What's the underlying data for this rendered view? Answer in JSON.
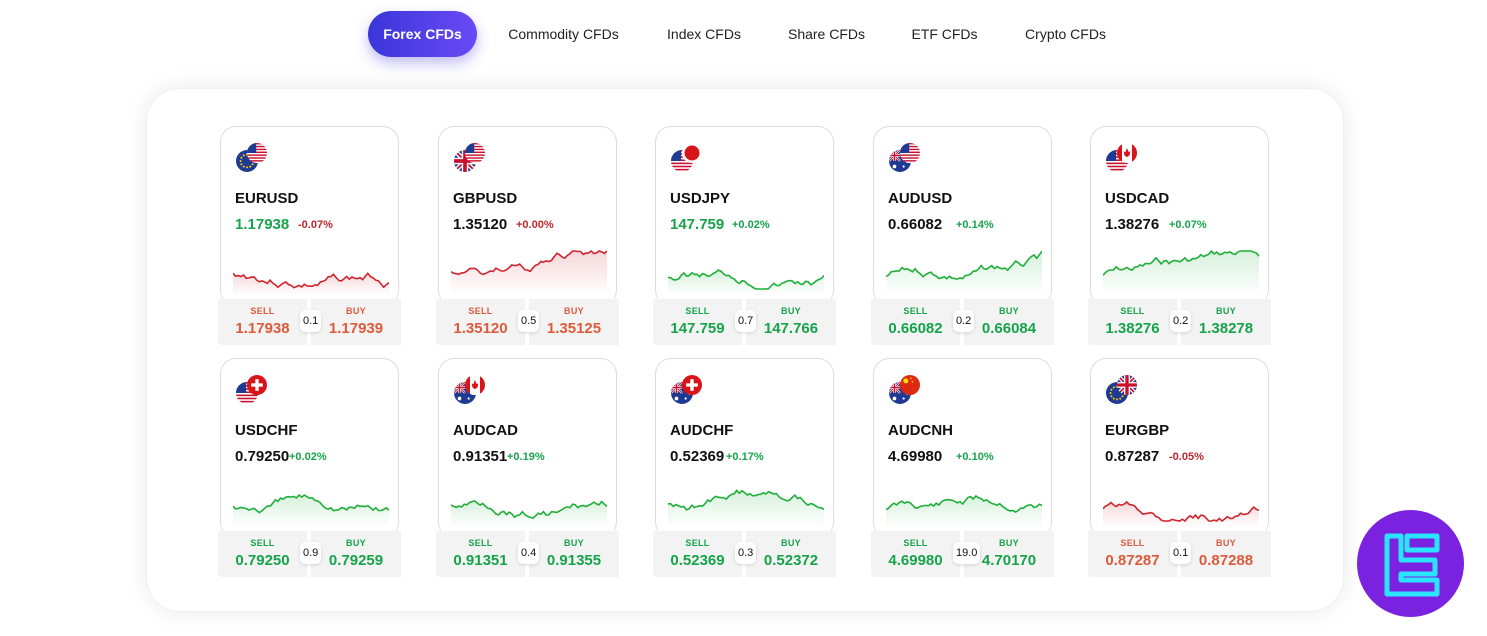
{
  "tabs": [
    {
      "label": "Forex CFDs",
      "active": true
    },
    {
      "label": "Commodity CFDs",
      "active": false
    },
    {
      "label": "Index CFDs",
      "active": false
    },
    {
      "label": "Share CFDs",
      "active": false
    },
    {
      "label": "ETF CFDs",
      "active": false
    },
    {
      "label": "Crypto CFDs",
      "active": false
    }
  ],
  "labels": {
    "sell": "SELL",
    "buy": "BUY"
  },
  "colors": {
    "up": "#16a34a",
    "down": "#c0262d",
    "accent": "#4a3de6",
    "logo": "#7b22e0"
  },
  "instruments": [
    {
      "symbol": "EURUSD",
      "price": "1.17938",
      "change": "-0.07%",
      "direction": "down",
      "sell": "1.17938",
      "buy": "1.17939",
      "spread": "0.1",
      "flags": [
        "eu-flag-icon",
        "us-flag-icon"
      ]
    },
    {
      "symbol": "GBPUSD",
      "price": "1.35120",
      "change": "+0.00%",
      "direction": "flat",
      "sell": "1.35120",
      "buy": "1.35125",
      "spread": "0.5",
      "flags": [
        "uk-flag-icon",
        "us-flag-icon"
      ]
    },
    {
      "symbol": "USDJPY",
      "price": "147.759",
      "change": "+0.02%",
      "direction": "up",
      "sell": "147.759",
      "buy": "147.766",
      "spread": "0.7",
      "flags": [
        "us-flag-icon",
        "jp-flag-icon"
      ]
    },
    {
      "symbol": "AUDUSD",
      "price": "0.66082",
      "change": "+0.14%",
      "direction": "up-dark",
      "sell": "0.66082",
      "buy": "0.66084",
      "spread": "0.2",
      "flags": [
        "au-flag-icon",
        "us-flag-icon"
      ]
    },
    {
      "symbol": "USDCAD",
      "price": "1.38276",
      "change": "+0.07%",
      "direction": "up-dark",
      "sell": "1.38276",
      "buy": "1.38278",
      "spread": "0.2",
      "flags": [
        "us-flag-icon",
        "ca-flag-icon"
      ]
    },
    {
      "symbol": "USDCHF",
      "price": "0.79250",
      "change": "+0.02%",
      "direction": "up-dark",
      "sell": "0.79250",
      "buy": "0.79259",
      "spread": "0.9",
      "flags": [
        "us-flag-icon",
        "ch-flag-icon"
      ]
    },
    {
      "symbol": "AUDCAD",
      "price": "0.91351",
      "change": "+0.19%",
      "direction": "up-dark",
      "sell": "0.91351",
      "buy": "0.91355",
      "spread": "0.4",
      "flags": [
        "au-flag-icon",
        "ca-flag-icon"
      ]
    },
    {
      "symbol": "AUDCHF",
      "price": "0.52369",
      "change": "+0.17%",
      "direction": "up-dark",
      "sell": "0.52369",
      "buy": "0.52372",
      "spread": "0.3",
      "flags": [
        "au-flag-icon",
        "ch-flag-icon"
      ]
    },
    {
      "symbol": "AUDCNH",
      "price": "4.69980",
      "change": "+0.10%",
      "direction": "up-dark",
      "sell": "4.69980",
      "buy": "4.70170",
      "spread": "19.0",
      "flags": [
        "au-flag-icon",
        "cn-flag-icon"
      ]
    },
    {
      "symbol": "EURGBP",
      "price": "0.87287",
      "change": "-0.05%",
      "direction": "down-dark",
      "sell": "0.87287",
      "buy": "0.87288",
      "spread": "0.1",
      "flags": [
        "eu-flag-icon",
        "uk-flag-icon"
      ]
    }
  ]
}
